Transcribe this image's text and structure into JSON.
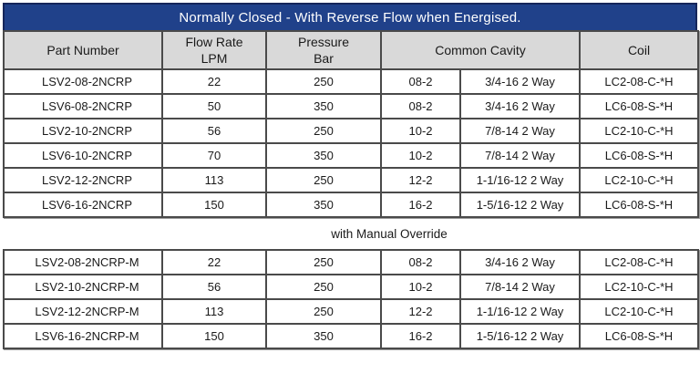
{
  "banner": {
    "title": "Normally Closed - With Reverse Flow when Energised.",
    "bg_color": "#20418a",
    "border_color": "#16265b",
    "text_color": "#ffffff"
  },
  "columns": {
    "part": "Part Number",
    "flow": "Flow Rate\nLPM",
    "pressure": "Pressure\nBar",
    "cavity": "Common Cavity",
    "coil": "Coil"
  },
  "colors": {
    "header_bg": "#d9d9d9",
    "grid_line": "#4a4a4a",
    "cavity_subdivider": "#b0b0b0",
    "text": "#1a1a1a"
  },
  "main_table": {
    "rows": [
      {
        "part": "LSV2-08-2NCRP",
        "flow": "22",
        "pressure": "250",
        "cavity_code": "08-2",
        "cavity_thread": "3/4-16 2 Way",
        "coil": "LC2-08-C-*H"
      },
      {
        "part": "LSV6-08-2NCRP",
        "flow": "50",
        "pressure": "350",
        "cavity_code": "08-2",
        "cavity_thread": "3/4-16 2 Way",
        "coil": "LC6-08-S-*H"
      },
      {
        "part": "LSV2-10-2NCRP",
        "flow": "56",
        "pressure": "250",
        "cavity_code": "10-2",
        "cavity_thread": "7/8-14 2 Way",
        "coil": "LC2-10-C-*H"
      },
      {
        "part": "LSV6-10-2NCRP",
        "flow": "70",
        "pressure": "350",
        "cavity_code": "10-2",
        "cavity_thread": "7/8-14 2 Way",
        "coil": "LC6-08-S-*H"
      },
      {
        "part": "LSV2-12-2NCRP",
        "flow": "113",
        "pressure": "250",
        "cavity_code": "12-2",
        "cavity_thread": "1-1/16-12 2 Way",
        "coil": "LC2-10-C-*H"
      },
      {
        "part": "LSV6-16-2NCRP",
        "flow": "150",
        "pressure": "350",
        "cavity_code": "16-2",
        "cavity_thread": "1-5/16-12 2 Way",
        "coil": "LC6-08-S-*H"
      }
    ]
  },
  "override_section": {
    "label": "with Manual Override",
    "rows": [
      {
        "part": "LSV2-08-2NCRP-M",
        "flow": "22",
        "pressure": "250",
        "cavity_code": "08-2",
        "cavity_thread": "3/4-16 2 Way",
        "coil": "LC2-08-C-*H"
      },
      {
        "part": "LSV2-10-2NCRP-M",
        "flow": "56",
        "pressure": "250",
        "cavity_code": "10-2",
        "cavity_thread": "7/8-14 2 Way",
        "coil": "LC2-10-C-*H"
      },
      {
        "part": "LSV2-12-2NCRP-M",
        "flow": "113",
        "pressure": "250",
        "cavity_code": "12-2",
        "cavity_thread": "1-1/16-12 2 Way",
        "coil": "LC2-10-C-*H"
      },
      {
        "part": "LSV6-16-2NCRP-M",
        "flow": "150",
        "pressure": "350",
        "cavity_code": "16-2",
        "cavity_thread": "1-5/16-12 2 Way",
        "coil": "LC6-08-S-*H"
      }
    ]
  }
}
